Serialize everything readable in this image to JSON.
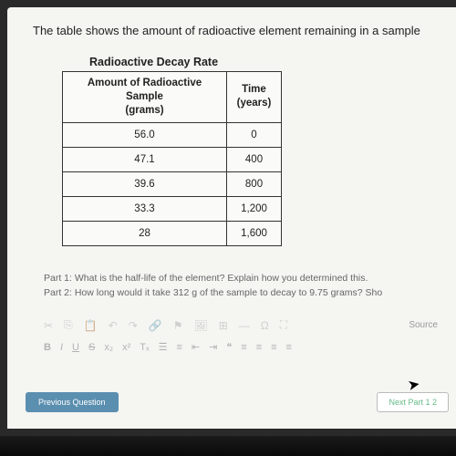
{
  "header": "The table shows the amount of radioactive element remaining in a sample",
  "table": {
    "title": "Radioactive Decay Rate",
    "col1_line1": "Amount of Radioactive Sample",
    "col1_line2": "(grams)",
    "col2_line1": "Time",
    "col2_line2": "(years)",
    "rows": [
      {
        "a": "56.0",
        "b": "0"
      },
      {
        "a": "47.1",
        "b": "400"
      },
      {
        "a": "39.6",
        "b": "800"
      },
      {
        "a": "33.3",
        "b": "1,200"
      },
      {
        "a": "28",
        "b": "1,600"
      }
    ]
  },
  "questions": {
    "part1": "Part 1: What is the half-life of the element? Explain how you determined this.",
    "part2": "Part 2: How long would it take 312 g of the sample to decay to 9.75 grams? Sho"
  },
  "editor": {
    "bold": "B",
    "italic": "I",
    "underline": "U",
    "strike": "S",
    "sub": "x₂",
    "sup": "x²",
    "tx": "Tₓ",
    "source": "Source"
  },
  "buttons": {
    "prev": "Previous Question",
    "next": "Next Part 1 2"
  }
}
